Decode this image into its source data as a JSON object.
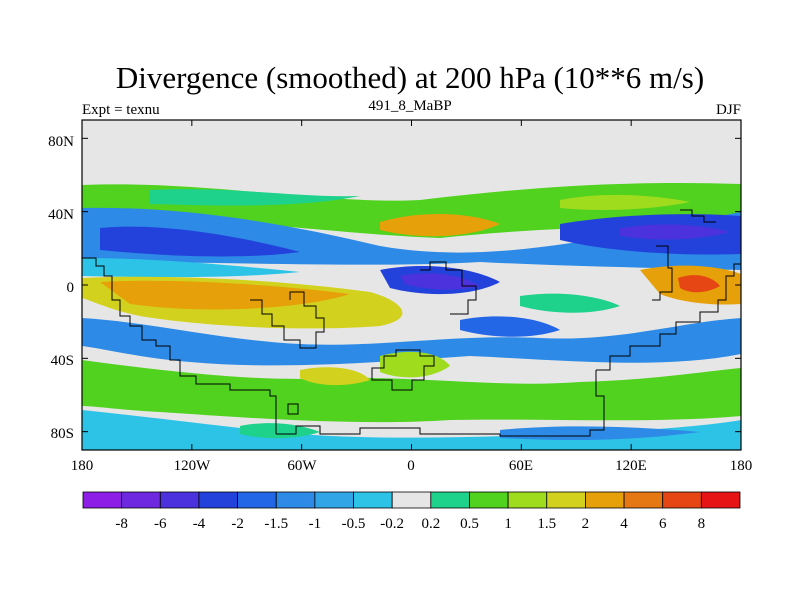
{
  "chart_data": {
    "type": "heatmap",
    "title": "Divergence (smoothed) at 200 hPa (10**6 m/s)",
    "left_subtitle": "Expt = texnu",
    "center_subtitle": "491_8_MaBP",
    "right_subtitle": "DJF",
    "x_ticks": [
      "180",
      "120W",
      "60W",
      "0",
      "60E",
      "120E",
      "180"
    ],
    "y_ticks": [
      "80N",
      "40N",
      "0",
      "40S",
      "80S"
    ],
    "x_range": [
      -180,
      180
    ],
    "y_range": [
      -90,
      90
    ],
    "colorbar": {
      "colors": [
        "#8c1ee6",
        "#6e28e0",
        "#4b32dc",
        "#2342dc",
        "#2366e6",
        "#2d8ae6",
        "#32a5e6",
        "#2dc3e6",
        "#e6e6e6",
        "#1ed28c",
        "#50d21e",
        "#a0dc1e",
        "#d2d21e",
        "#e6a00a",
        "#e67814",
        "#e64614",
        "#e61414"
      ],
      "labels": [
        "-8",
        "-6",
        "-4",
        "-2",
        "-1.5",
        "-1",
        "-0.5",
        "-0.2",
        "0.2",
        "0.5",
        "1",
        "1.5",
        "2",
        "4",
        "6",
        "8"
      ]
    },
    "field_bands": [
      {
        "lat_range": [
          80,
          55
        ],
        "level": "-0.2..0.2",
        "color": "#e6e6e6"
      },
      {
        "lat_range": [
          55,
          45
        ],
        "level": "0.5..1.5",
        "color": "#50d21e"
      },
      {
        "lat_range": [
          45,
          35
        ],
        "level": "-1..-0.5",
        "color": "#32a5e6"
      },
      {
        "lat_range": [
          35,
          20
        ],
        "level": "-4..-1.5",
        "color": "#2342dc"
      },
      {
        "lat_range": [
          20,
          5
        ],
        "level": "-1..0.5",
        "color": "#2dc3e6"
      },
      {
        "lat_range": [
          5,
          -15
        ],
        "level": "1.5..4",
        "color": "#e6a00a"
      },
      {
        "lat_range": [
          -15,
          -35
        ],
        "level": "-1..-0.5",
        "color": "#2d8ae6"
      },
      {
        "lat_range": [
          -35,
          -60
        ],
        "level": "0.5..1.5",
        "color": "#50d21e"
      },
      {
        "lat_range": [
          -60,
          -80
        ],
        "level": "-0.5..0.5",
        "color": "#2dc3e6"
      }
    ]
  }
}
